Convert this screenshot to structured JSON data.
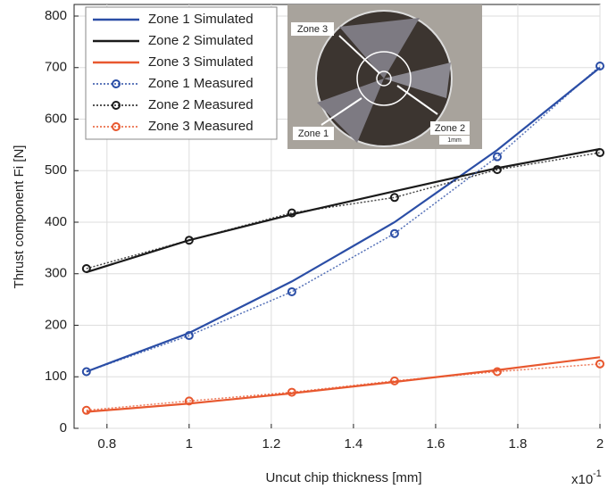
{
  "chart_data": {
    "type": "line",
    "x_label": "Uncut chip thickness [mm]",
    "y_label": "Thrust component Fi [N]",
    "x_multiplier": "x10",
    "x_multiplier_exponent": "-1",
    "x": [
      0.75,
      1,
      1.25,
      1.5,
      1.75,
      2
    ],
    "xlim": [
      0.72,
      2
    ],
    "xticks": [
      0.8,
      1,
      1.2,
      1.4,
      1.6,
      1.8,
      2
    ],
    "ylim": [
      0,
      800
    ],
    "yticks": [
      0,
      100,
      200,
      300,
      400,
      500,
      600,
      700,
      800
    ],
    "grid": true,
    "legend": "upper left",
    "series": [
      {
        "name": "Zone 1 Simulated",
        "color": "#2b4ea6",
        "style": "solid",
        "values": [
          110,
          185,
          285,
          400,
          540,
          700
        ]
      },
      {
        "name": "Zone 2 Simulated",
        "color": "#1a1a1a",
        "style": "solid",
        "values": [
          303,
          365,
          415,
          460,
          505,
          542
        ]
      },
      {
        "name": "Zone 3 Simulated",
        "color": "#e8582f",
        "style": "solid",
        "values": [
          32,
          48,
          68,
          90,
          113,
          138
        ]
      },
      {
        "name": "Zone 1 Measured",
        "color": "#2b4ea6",
        "style": "dotted",
        "values": [
          110,
          180,
          265,
          378,
          527,
          703
        ]
      },
      {
        "name": "Zone 2 Measured",
        "color": "#1a1a1a",
        "style": "dotted",
        "values": [
          310,
          365,
          418,
          448,
          502,
          535
        ]
      },
      {
        "name": "Zone 3 Measured",
        "color": "#e8582f",
        "style": "dotted",
        "values": [
          35,
          53,
          70,
          92,
          110,
          125
        ]
      }
    ],
    "inset": {
      "zone3": "Zone 3",
      "zone2": "Zone 2",
      "zone1": "Zone 1",
      "scale": "1mm"
    }
  }
}
